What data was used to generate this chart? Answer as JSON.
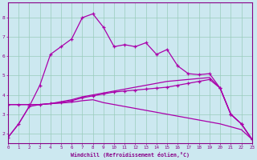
{
  "xlabel": "Windchill (Refroidissement éolien,°C)",
  "bg_color": "#cce8f0",
  "grid_color": "#99ccbb",
  "line_color": "#aa00aa",
  "xlim": [
    0,
    23
  ],
  "ylim": [
    1.5,
    8.8
  ],
  "xticks": [
    0,
    1,
    2,
    3,
    4,
    5,
    6,
    7,
    8,
    9,
    10,
    11,
    12,
    13,
    14,
    15,
    16,
    17,
    18,
    19,
    20,
    21,
    22,
    23
  ],
  "yticks": [
    2,
    3,
    4,
    5,
    6,
    7,
    8
  ],
  "s1_x": [
    0,
    1,
    2,
    3,
    4,
    5,
    6,
    7,
    8,
    9,
    10,
    11,
    12,
    13,
    14,
    15,
    16,
    17,
    18,
    19,
    20,
    21,
    22,
    23
  ],
  "s1_y": [
    1.8,
    2.5,
    3.4,
    4.5,
    6.1,
    6.5,
    6.9,
    8.0,
    8.2,
    7.5,
    6.5,
    6.6,
    6.5,
    6.7,
    6.1,
    6.35,
    5.5,
    5.1,
    5.05,
    5.1,
    4.35,
    3.0,
    2.5,
    1.7
  ],
  "s2_x": [
    0,
    1,
    2,
    3,
    4,
    5,
    6,
    7,
    8,
    9,
    10,
    11,
    12,
    13,
    14,
    15,
    16,
    17,
    18,
    19,
    20,
    21,
    22,
    23
  ],
  "s2_y": [
    3.5,
    3.5,
    3.5,
    3.5,
    3.55,
    3.6,
    3.7,
    3.85,
    3.95,
    4.05,
    4.15,
    4.2,
    4.25,
    4.3,
    4.35,
    4.4,
    4.5,
    4.6,
    4.7,
    4.8,
    4.35,
    3.0,
    2.5,
    1.7
  ],
  "s3_x": [
    0,
    1,
    2,
    3,
    4,
    5,
    6,
    7,
    8,
    9,
    10,
    11,
    12,
    13,
    14,
    15,
    16,
    17,
    18,
    19,
    20,
    21,
    22,
    23
  ],
  "s3_y": [
    3.5,
    3.5,
    3.5,
    3.5,
    3.55,
    3.58,
    3.62,
    3.7,
    3.75,
    3.6,
    3.5,
    3.4,
    3.3,
    3.2,
    3.1,
    3.0,
    2.9,
    2.8,
    2.7,
    2.6,
    2.5,
    2.35,
    2.2,
    1.7
  ],
  "s4_x": [
    0,
    1,
    2,
    3,
    4,
    5,
    6,
    7,
    8,
    9,
    10,
    11,
    12,
    13,
    14,
    15,
    16,
    17,
    18,
    19,
    20,
    21,
    22,
    23
  ],
  "s4_y": [
    1.8,
    2.5,
    3.4,
    3.5,
    3.55,
    3.65,
    3.75,
    3.9,
    4.0,
    4.1,
    4.2,
    4.3,
    4.4,
    4.5,
    4.6,
    4.7,
    4.75,
    4.8,
    4.85,
    4.9,
    4.35,
    3.0,
    2.5,
    1.7
  ]
}
